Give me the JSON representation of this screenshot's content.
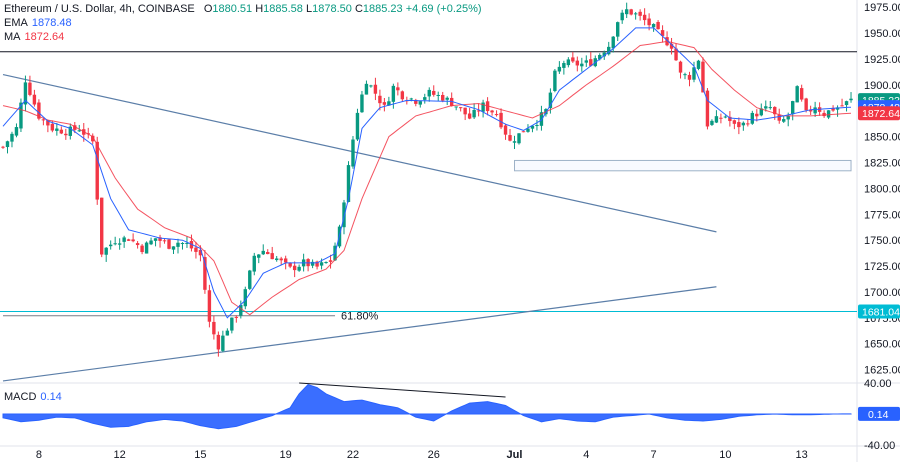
{
  "legend": {
    "symbol": "Ethereum / U.S. Dollar, 4h, COINBASE",
    "ohlc": [
      {
        "key": "O",
        "value": "1880.51"
      },
      {
        "key": "H",
        "value": "1885.58"
      },
      {
        "key": "L",
        "value": "1878.50"
      },
      {
        "key": "C",
        "value": "1885.23"
      }
    ],
    "change": "+4.69 (+0.25%)",
    "ema_label": "EMA",
    "ema_value": "1878.48",
    "ma_label": "MA",
    "ma_value": "1872.64",
    "macd_label": "MACD",
    "macd_value": "0.14"
  },
  "colors": {
    "up": "#089981",
    "down": "#f23645",
    "ema": "#2962ff",
    "ma": "#f23645",
    "macd": "#2962ff",
    "level": "#131722",
    "support": "#00bcd4",
    "trend": "#5b7ea8",
    "fib": "#673ab7"
  },
  "chart_data": [
    {
      "type": "candlestick",
      "title": "Ethereum / U.S. Dollar, 4h, COINBASE",
      "ylim": [
        1612,
        1982
      ],
      "y_ticks": [
        "1975.00",
        "1950.00",
        "1925.00",
        "1900.00",
        "1875.00",
        "1850.00",
        "1825.00",
        "1800.00",
        "1775.00",
        "1750.00",
        "1725.00",
        "1700.00",
        "1675.00",
        "1650.00",
        "1625.00"
      ],
      "x_ticks": [
        "8",
        "12",
        "15",
        "19",
        "22",
        "26",
        "Jul",
        "4",
        "7",
        "10",
        "13"
      ],
      "x_tick_index": [
        8,
        26,
        44,
        63,
        78,
        96,
        114,
        130,
        145,
        161,
        178
      ],
      "price_badges": [
        {
          "label": "1885.23",
          "value": 1885.23,
          "color": "#089981"
        },
        {
          "label": "1878.48",
          "value": 1878.48,
          "color": "#2962ff"
        },
        {
          "label": "1872.64",
          "value": 1872.64,
          "color": "#f23645"
        },
        {
          "label": "1681.04",
          "value": 1681.04,
          "color": "#00bcd4"
        }
      ],
      "annotations": [
        {
          "type": "hline",
          "value": 1932,
          "note": "resistance"
        },
        {
          "type": "hline",
          "value": 1681.04,
          "note": "support"
        },
        {
          "type": "fib",
          "label": "61.80%",
          "value": 1677,
          "from": 0,
          "to": 74
        },
        {
          "type": "trendline",
          "from": [
            0,
            1910
          ],
          "to": [
            159,
            1758
          ]
        },
        {
          "type": "trendline",
          "from": [
            0,
            1614
          ],
          "to": [
            159,
            1705
          ]
        },
        {
          "type": "box",
          "from": [
            114,
            1827
          ],
          "to": [
            189,
            1817
          ]
        }
      ],
      "anchors": [
        [
          0,
          1840
        ],
        [
          3,
          1858
        ],
        [
          5,
          1905
        ],
        [
          8,
          1870
        ],
        [
          11,
          1858
        ],
        [
          14,
          1855
        ],
        [
          17,
          1858
        ],
        [
          20,
          1845
        ],
        [
          22,
          1738
        ],
        [
          25,
          1750
        ],
        [
          28,
          1752
        ],
        [
          31,
          1742
        ],
        [
          34,
          1752
        ],
        [
          37,
          1745
        ],
        [
          39,
          1748
        ],
        [
          41,
          1746
        ],
        [
          44,
          1735
        ],
        [
          46,
          1670
        ],
        [
          48,
          1648
        ],
        [
          50,
          1665
        ],
        [
          52,
          1678
        ],
        [
          54,
          1700
        ],
        [
          56,
          1735
        ],
        [
          58,
          1740
        ],
        [
          61,
          1732
        ],
        [
          64,
          1722
        ],
        [
          67,
          1728
        ],
        [
          70,
          1724
        ],
        [
          73,
          1730
        ],
        [
          75,
          1760
        ],
        [
          77,
          1820
        ],
        [
          79,
          1875
        ],
        [
          81,
          1905
        ],
        [
          83,
          1892
        ],
        [
          85,
          1878
        ],
        [
          87,
          1898
        ],
        [
          89,
          1890
        ],
        [
          92,
          1885
        ],
        [
          95,
          1892
        ],
        [
          98,
          1888
        ],
        [
          101,
          1880
        ],
        [
          104,
          1868
        ],
        [
          107,
          1880
        ],
        [
          110,
          1872
        ],
        [
          113,
          1845
        ],
        [
          115,
          1852
        ],
        [
          117,
          1860
        ],
        [
          119,
          1865
        ],
        [
          121,
          1875
        ],
        [
          123,
          1910
        ],
        [
          125,
          1922
        ],
        [
          127,
          1920
        ],
        [
          129,
          1920
        ],
        [
          131,
          1922
        ],
        [
          133,
          1930
        ],
        [
          135,
          1938
        ],
        [
          137,
          1962
        ],
        [
          139,
          1972
        ],
        [
          141,
          1968
        ],
        [
          143,
          1962
        ],
        [
          145,
          1955
        ],
        [
          147,
          1945
        ],
        [
          149,
          1938
        ],
        [
          151,
          1910
        ],
        [
          153,
          1908
        ],
        [
          155,
          1925
        ],
        [
          157,
          1862
        ],
        [
          159,
          1866
        ],
        [
          161,
          1870
        ],
        [
          163,
          1860
        ],
        [
          165,
          1862
        ],
        [
          167,
          1870
        ],
        [
          169,
          1875
        ],
        [
          171,
          1878
        ],
        [
          173,
          1862
        ],
        [
          175,
          1870
        ],
        [
          177,
          1895
        ],
        [
          179,
          1872
        ],
        [
          181,
          1880
        ],
        [
          183,
          1872
        ],
        [
          185,
          1877
        ],
        [
          187,
          1880
        ],
        [
          189,
          1885.23
        ]
      ],
      "ema_anchors": [
        [
          0,
          1860
        ],
        [
          5,
          1885
        ],
        [
          10,
          1865
        ],
        [
          15,
          1858
        ],
        [
          20,
          1842
        ],
        [
          24,
          1790
        ],
        [
          28,
          1760
        ],
        [
          35,
          1752
        ],
        [
          40,
          1750
        ],
        [
          44,
          1742
        ],
        [
          47,
          1700
        ],
        [
          50,
          1675
        ],
        [
          54,
          1692
        ],
        [
          58,
          1718
        ],
        [
          63,
          1728
        ],
        [
          70,
          1728
        ],
        [
          74,
          1737
        ],
        [
          77,
          1790
        ],
        [
          80,
          1858
        ],
        [
          84,
          1878
        ],
        [
          90,
          1885
        ],
        [
          100,
          1884
        ],
        [
          106,
          1876
        ],
        [
          112,
          1862
        ],
        [
          116,
          1856
        ],
        [
          120,
          1866
        ],
        [
          124,
          1895
        ],
        [
          130,
          1915
        ],
        [
          136,
          1935
        ],
        [
          141,
          1955
        ],
        [
          145,
          1955
        ],
        [
          150,
          1935
        ],
        [
          154,
          1918
        ],
        [
          157,
          1885
        ],
        [
          162,
          1868
        ],
        [
          168,
          1866
        ],
        [
          174,
          1870
        ],
        [
          180,
          1876
        ],
        [
          189,
          1878.48
        ]
      ],
      "ma_anchors": [
        [
          0,
          1880
        ],
        [
          5,
          1875
        ],
        [
          10,
          1866
        ],
        [
          15,
          1862
        ],
        [
          20,
          1850
        ],
        [
          25,
          1810
        ],
        [
          30,
          1780
        ],
        [
          36,
          1762
        ],
        [
          42,
          1752
        ],
        [
          47,
          1730
        ],
        [
          51,
          1690
        ],
        [
          55,
          1678
        ],
        [
          60,
          1695
        ],
        [
          66,
          1712
        ],
        [
          72,
          1722
        ],
        [
          76,
          1740
        ],
        [
          80,
          1790
        ],
        [
          86,
          1850
        ],
        [
          92,
          1870
        ],
        [
          100,
          1880
        ],
        [
          106,
          1882
        ],
        [
          112,
          1875
        ],
        [
          118,
          1868
        ],
        [
          124,
          1880
        ],
        [
          130,
          1900
        ],
        [
          136,
          1918
        ],
        [
          142,
          1938
        ],
        [
          148,
          1942
        ],
        [
          154,
          1936
        ],
        [
          158,
          1915
        ],
        [
          163,
          1895
        ],
        [
          168,
          1878
        ],
        [
          174,
          1870
        ],
        [
          180,
          1870
        ],
        [
          189,
          1872.64
        ]
      ]
    },
    {
      "type": "area",
      "title": "MACD",
      "ylim": [
        -40,
        40
      ],
      "y_ticks": [
        "40.00",
        "-40.00"
      ],
      "value_badge": {
        "label": "0.14",
        "value": 0.14
      },
      "annotations": [
        {
          "type": "trendline",
          "from": [
            66,
            40
          ],
          "to": [
            112,
            22
          ]
        }
      ],
      "anchors": [
        [
          0,
          -5
        ],
        [
          4,
          -10
        ],
        [
          8,
          -8
        ],
        [
          12,
          -4
        ],
        [
          16,
          -5
        ],
        [
          20,
          -12
        ],
        [
          24,
          -17
        ],
        [
          28,
          -16
        ],
        [
          32,
          -10
        ],
        [
          36,
          -7
        ],
        [
          40,
          -9
        ],
        [
          44,
          -15
        ],
        [
          48,
          -19
        ],
        [
          52,
          -16
        ],
        [
          56,
          -9
        ],
        [
          60,
          -2
        ],
        [
          64,
          8
        ],
        [
          66,
          26
        ],
        [
          68,
          38
        ],
        [
          70,
          34
        ],
        [
          72,
          26
        ],
        [
          76,
          16
        ],
        [
          80,
          18
        ],
        [
          84,
          12
        ],
        [
          88,
          8
        ],
        [
          92,
          -4
        ],
        [
          96,
          -9
        ],
        [
          100,
          4
        ],
        [
          104,
          14
        ],
        [
          108,
          16
        ],
        [
          112,
          11
        ],
        [
          116,
          -2
        ],
        [
          120,
          -10
        ],
        [
          124,
          -6
        ],
        [
          128,
          -9
        ],
        [
          132,
          -10
        ],
        [
          136,
          -4
        ],
        [
          140,
          -2
        ],
        [
          144,
          0
        ],
        [
          148,
          -5
        ],
        [
          152,
          -8
        ],
        [
          156,
          -9
        ],
        [
          160,
          -7
        ],
        [
          164,
          -3
        ],
        [
          168,
          -1
        ],
        [
          172,
          0
        ],
        [
          176,
          -1
        ],
        [
          180,
          -1
        ],
        [
          185,
          0
        ],
        [
          189,
          0.14
        ]
      ]
    }
  ]
}
